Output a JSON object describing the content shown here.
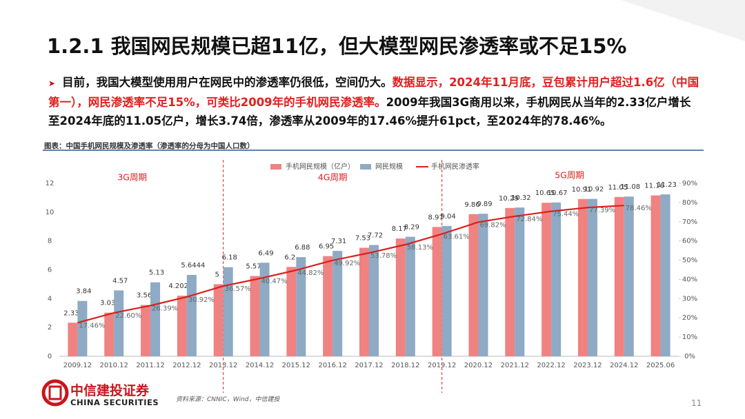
{
  "title": "1.2.1 我国网民规模已超11亿，但大模型网民渗透率或不足15%",
  "bullet": [
    "目前，我国大模型使用用户在网民中的渗透率仍很低，空间仍大。",
    "数据显示，2024年11月底，豆包累计用户超过1.6亿（中国第一），网民渗透率不足15%，可类比2009年的手机网民渗透率。",
    "2009年我国3G商用以来，手机网民从当年的2.33亿户增长至2024年底的11.05亿户，增长3.74倍，渗透率从2009年的17.46%提升61pct，至2024年的78.46%。"
  ],
  "caption": "图表：中国手机网民规模及渗透率（渗透率的分母为中国人口数）",
  "source": "资料来源：CNNIC，Wind，中信建投",
  "logo": [
    "中信建投证券",
    "CHINA SECURITIES"
  ],
  "page_number": "11",
  "chart_data": {
    "type": "bar_line",
    "categories": [
      "2009.12",
      "2010.12",
      "2011.12",
      "2012.12",
      "2013.12",
      "2014.12",
      "2015.12",
      "2016.12",
      "2017.12",
      "2018.12",
      "2019.12",
      "2020.12",
      "2021.12",
      "2022.12",
      "2023.12",
      "2024.12",
      "2025.06"
    ],
    "series": [
      {
        "name": "手机网民规模（亿户）",
        "type": "bar",
        "color": "#f08282",
        "values": [
          2.33,
          3.03,
          3.56,
          4.2021,
          5,
          5.57,
          6.2,
          6.95,
          7.53,
          8.17,
          8.97,
          9.86,
          10.29,
          10.65,
          10.91,
          11.05,
          11.16
        ]
      },
      {
        "name": "网民规模",
        "type": "bar",
        "color": "#8eaac4",
        "values": [
          3.84,
          4.57,
          5.13,
          5.6444,
          6.18,
          6.49,
          6.88,
          7.31,
          7.72,
          8.29,
          9.04,
          9.89,
          10.32,
          10.67,
          10.92,
          11.08,
          11.23
        ]
      },
      {
        "name": "手机网民渗透率",
        "type": "line",
        "axis": "y2",
        "color": "#d9201e",
        "values": [
          17.46,
          22.6,
          26.39,
          30.92,
          36.57,
          40.47,
          44.82,
          49.92,
          53.78,
          58.13,
          63.61,
          69.82,
          72.84,
          75.44,
          77.39,
          78.46,
          null
        ],
        "value_labels": [
          "17.46%",
          "22.60%",
          "26.39%",
          "30.92%",
          "36.57%",
          "40.47%",
          "44.82%",
          "49.92%",
          "53.78%",
          "58.13%",
          "63.61%",
          "69.82%",
          "72.84%",
          "75.44%",
          "77.39%",
          "78.46%",
          null
        ]
      }
    ],
    "ylim": [
      0,
      12
    ],
    "yticks": [
      0,
      2,
      4,
      6,
      8,
      10,
      12
    ],
    "y2lim": [
      0,
      90
    ],
    "y2ticks": [
      {
        "value": 0,
        "label": "0%"
      },
      {
        "value": 10,
        "label": "10%"
      },
      {
        "value": 20,
        "label": "20%"
      },
      {
        "value": 30,
        "label": "30%"
      },
      {
        "value": 40,
        "label": "40%"
      },
      {
        "value": 50,
        "label": "50%"
      },
      {
        "value": 60,
        "label": "60%"
      },
      {
        "value": 70,
        "label": "70%"
      },
      {
        "value": 80,
        "label": "80%"
      },
      {
        "value": 90,
        "label": "90%"
      }
    ],
    "legend": "top",
    "annotations": [
      "3G周期",
      "4G周期",
      "5G周期"
    ]
  }
}
